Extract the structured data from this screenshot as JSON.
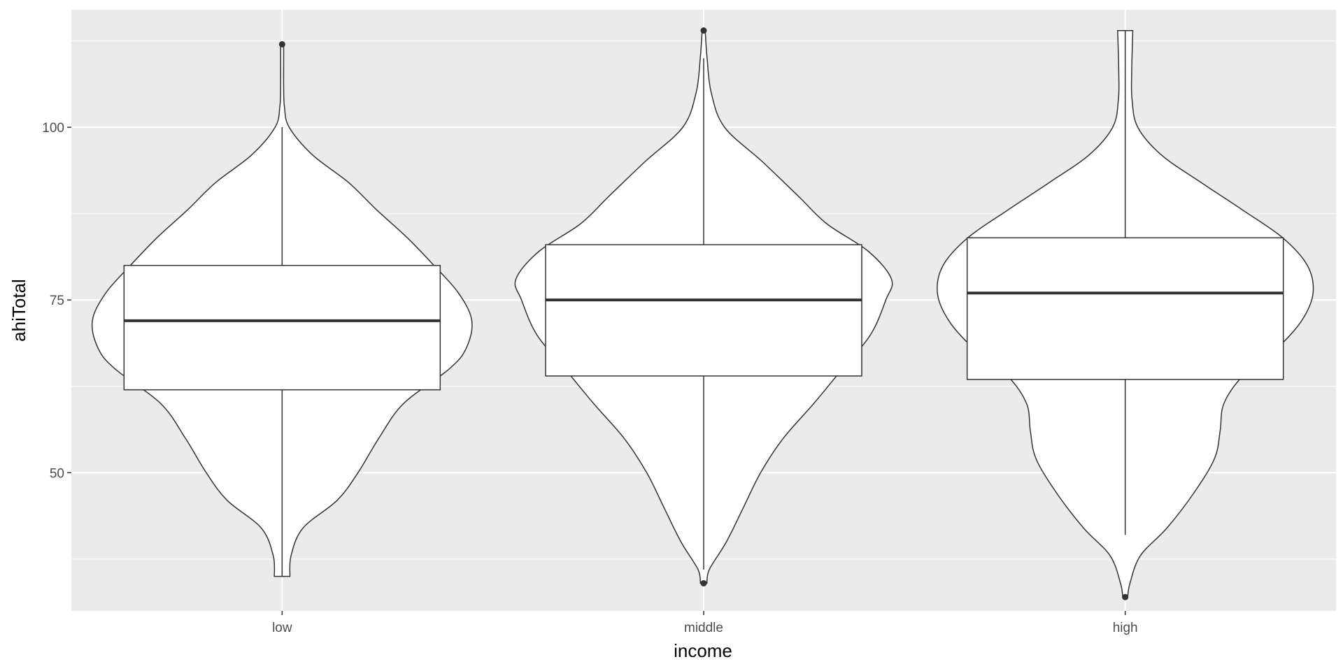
{
  "chart_data": {
    "type": "violin",
    "overlay": "boxplot",
    "xlabel": "income",
    "ylabel": "ahiTotal",
    "categories": [
      "low",
      "middle",
      "high"
    ],
    "ylim": [
      30,
      117
    ],
    "yticks": [
      50,
      75,
      100
    ],
    "grid": true,
    "violins": [
      {
        "category": "low",
        "min": 35,
        "max": 112,
        "density": [
          [
            35,
            0.041
          ],
          [
            38,
            0.047
          ],
          [
            42,
            0.11
          ],
          [
            46,
            0.29
          ],
          [
            50,
            0.4
          ],
          [
            55,
            0.51
          ],
          [
            60,
            0.64
          ],
          [
            65,
            0.88
          ],
          [
            68,
            0.97
          ],
          [
            72,
            1.0
          ],
          [
            76,
            0.93
          ],
          [
            80,
            0.8
          ],
          [
            84,
            0.66
          ],
          [
            88,
            0.5
          ],
          [
            92,
            0.35
          ],
          [
            96,
            0.16
          ],
          [
            100,
            0.037
          ],
          [
            103,
            0.012
          ],
          [
            106,
            0.008
          ],
          [
            110,
            0.008
          ],
          [
            112,
            0.008
          ]
        ],
        "box": {
          "lower_whisker": 35,
          "q1": 62,
          "median": 72,
          "q3": 80,
          "upper_whisker": 100
        },
        "outliers": [
          112
        ]
      },
      {
        "category": "middle",
        "min": 34,
        "max": 114,
        "density": [
          [
            34,
            0.017
          ],
          [
            36,
            0.03
          ],
          [
            40,
            0.12
          ],
          [
            45,
            0.21
          ],
          [
            50,
            0.3
          ],
          [
            55,
            0.42
          ],
          [
            60,
            0.58
          ],
          [
            65,
            0.73
          ],
          [
            70,
            0.88
          ],
          [
            75,
            0.96
          ],
          [
            78,
            0.99
          ],
          [
            82,
            0.87
          ],
          [
            86,
            0.65
          ],
          [
            90,
            0.5
          ],
          [
            95,
            0.31
          ],
          [
            100,
            0.11
          ],
          [
            105,
            0.04
          ],
          [
            110,
            0.018
          ],
          [
            114,
            0.008
          ]
        ],
        "box": {
          "lower_whisker": 36,
          "q1": 64,
          "median": 75,
          "q3": 83,
          "upper_whisker": 110
        },
        "outliers": [
          34,
          114
        ]
      },
      {
        "category": "high",
        "min": 32,
        "max": 114,
        "density": [
          [
            32,
            0.013
          ],
          [
            34,
            0.025
          ],
          [
            38,
            0.08
          ],
          [
            42,
            0.22
          ],
          [
            47,
            0.36
          ],
          [
            52,
            0.47
          ],
          [
            56,
            0.5
          ],
          [
            60,
            0.52
          ],
          [
            64,
            0.62
          ],
          [
            68,
            0.8
          ],
          [
            72,
            0.93
          ],
          [
            76,
            0.99
          ],
          [
            80,
            0.96
          ],
          [
            84,
            0.83
          ],
          [
            88,
            0.62
          ],
          [
            92,
            0.4
          ],
          [
            96,
            0.19
          ],
          [
            100,
            0.066
          ],
          [
            104,
            0.036
          ],
          [
            108,
            0.034
          ],
          [
            114,
            0.04
          ]
        ],
        "box": {
          "lower_whisker": 41,
          "q1": 63.5,
          "median": 76,
          "q3": 84,
          "upper_whisker": 114
        },
        "outliers": [
          32
        ]
      }
    ]
  }
}
